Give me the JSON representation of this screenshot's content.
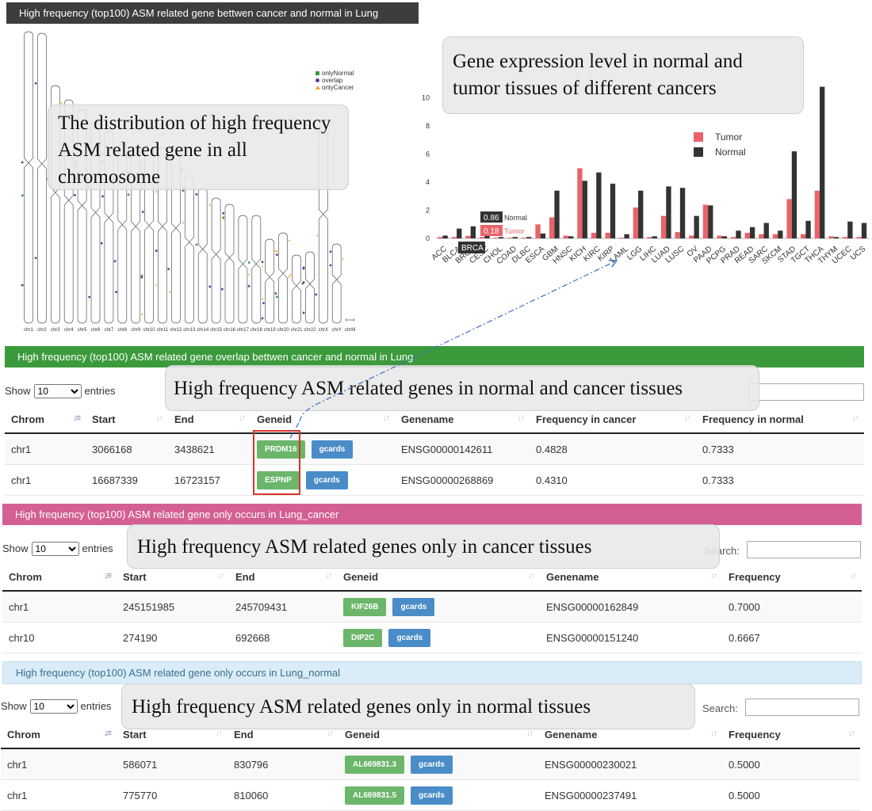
{
  "chromosome_panel": {
    "title": "High frequency (top100) ASM related gene bettwen cancer and normal in Lung",
    "legend": [
      "onlyNormal",
      "overlap",
      "onlyCancer"
    ],
    "legend_colors": [
      "#3a9b3a",
      "#5a3a9a",
      "#f0a030"
    ],
    "chromosomes": [
      "chr1",
      "chr2",
      "chr3",
      "chr4",
      "chr5",
      "chr6",
      "chr7",
      "chr8",
      "chr9",
      "chr10",
      "chr11",
      "chr12",
      "chr13",
      "chr14",
      "chr15",
      "chr16",
      "chr17",
      "chr18",
      "chr19",
      "chr20",
      "chr21",
      "chr22",
      "chrX",
      "chrY",
      "chrM"
    ]
  },
  "callouts": {
    "chromosome": "The distribution of high frequency ASM related gene in all chromosome",
    "expression": "Gene expression level in normal and tumor tissues of different cancers",
    "overlap": "High frequency ASM related genes in normal and cancer tissues",
    "cancer": "High frequency ASM related genes only in cancer tissues",
    "normal": "High frequency ASM related genes only in normal tissues"
  },
  "chart_data": {
    "type": "bar",
    "categories": [
      "ACC",
      "BLCA",
      "BRCA",
      "CESC",
      "CHOL",
      "COAD",
      "DLBC",
      "ESCA",
      "GBM",
      "HNSC",
      "KICH",
      "KIRC",
      "KIRP",
      "LAML",
      "LGG",
      "LIHC",
      "LUAD",
      "LUSC",
      "OV",
      "PAAD",
      "PCPG",
      "PRAD",
      "READ",
      "SARC",
      "SKCM",
      "STAD",
      "TGCT",
      "THCA",
      "THYM",
      "UCEC",
      "UCS"
    ],
    "tick_labels": [
      "ACC",
      "BLCA",
      "BRCA",
      "CESC",
      "CHOL",
      "COAD",
      "DLBC",
      "ESCA",
      "GBM",
      "HNSC",
      "KICH",
      "KIRC",
      "KIRP",
      "LAML",
      "LGG",
      "LIHC",
      "LUAD",
      "LUSC",
      "OV",
      "PAAD",
      "PCPG",
      "PRAD",
      "READ",
      "SARC",
      "SKCM",
      "STAD",
      "TGCT",
      "THCA",
      "THYM",
      "UCEC",
      "UCS"
    ],
    "series": [
      {
        "name": "Tumor",
        "color": "#e8636a",
        "values": [
          0.1,
          0.1,
          0.18,
          0.1,
          0.05,
          0.05,
          0.05,
          1.0,
          1.5,
          0.2,
          5.0,
          0.4,
          0.4,
          0.05,
          2.2,
          0.1,
          1.6,
          0.45,
          0.2,
          2.4,
          0.2,
          0.1,
          0.4,
          0.3,
          0.3,
          2.8,
          0.3,
          3.4,
          0.15,
          0.1,
          0.1
        ]
      },
      {
        "name": "Normal",
        "color": "#333333",
        "values": [
          0.2,
          0.7,
          0.86,
          0.4,
          0.1,
          0.1,
          0.1,
          0.35,
          3.4,
          0.15,
          4.1,
          4.7,
          3.9,
          0.3,
          3.4,
          0.15,
          3.7,
          3.6,
          1.6,
          2.35,
          0.15,
          0.55,
          0.8,
          1.1,
          0.55,
          6.2,
          1.25,
          10.8,
          0.1,
          1.2,
          1.1
        ]
      }
    ],
    "yticks": [
      0,
      2,
      4,
      6,
      8,
      10
    ],
    "ylim": [
      0,
      11
    ],
    "legend_position": "top-right",
    "tooltip": {
      "category": "BRCA",
      "normal": "0.86",
      "normal_label": "Normal",
      "tumor": "0.18",
      "tumor_label": "Tumor"
    }
  },
  "tables": {
    "show_label": "Show",
    "entries_label": "entries",
    "page_size": "10",
    "search_label": "Search:",
    "overlap": {
      "title": "High frequency (top100) ASM related gene overlap bettwen cancer and normal in Lung",
      "columns": [
        "Chrom",
        "Start",
        "End",
        "Geneid",
        "Genename",
        "Frequency in cancer",
        "Frequency in normal"
      ],
      "rows": [
        {
          "chrom": "chr1",
          "start": "3066168",
          "end": "3438621",
          "gene": "PRDM16",
          "gcards": "gcards",
          "genename": "ENSG00000142611",
          "f1": "0.4828",
          "f2": "0.7333"
        },
        {
          "chrom": "chr1",
          "start": "16687339",
          "end": "16723157",
          "gene": "ESPNP",
          "gcards": "gcards",
          "genename": "ENSG00000268869",
          "f1": "0.4310",
          "f2": "0.7333"
        }
      ]
    },
    "cancer": {
      "title": "High frequency (top100) ASM related gene only occurs in Lung_cancer",
      "columns": [
        "Chrom",
        "Start",
        "End",
        "Geneid",
        "Genename",
        "Frequency"
      ],
      "rows": [
        {
          "chrom": "chr1",
          "start": "245151985",
          "end": "245709431",
          "gene": "KIF26B",
          "gcards": "gcards",
          "genename": "ENSG00000162849",
          "f": "0.7000"
        },
        {
          "chrom": "chr10",
          "start": "274190",
          "end": "692668",
          "gene": "DIP2C",
          "gcards": "gcards",
          "genename": "ENSG00000151240",
          "f": "0.6667"
        }
      ]
    },
    "normal": {
      "title": "High frequency (top100) ASM related gene only occurs in Lung_normal",
      "columns": [
        "Chrom",
        "Start",
        "End",
        "Geneid",
        "Genename",
        "Frequency"
      ],
      "rows": [
        {
          "chrom": "chr1",
          "start": "586071",
          "end": "830796",
          "gene": "AL669831.3",
          "gcards": "gcards",
          "genename": "ENSG00000230021",
          "f": "0.5000"
        },
        {
          "chrom": "chr1",
          "start": "775770",
          "end": "810060",
          "gene": "AL669831.5",
          "gcards": "gcards",
          "genename": "ENSG00000237491",
          "f": "0.5000"
        }
      ]
    }
  }
}
